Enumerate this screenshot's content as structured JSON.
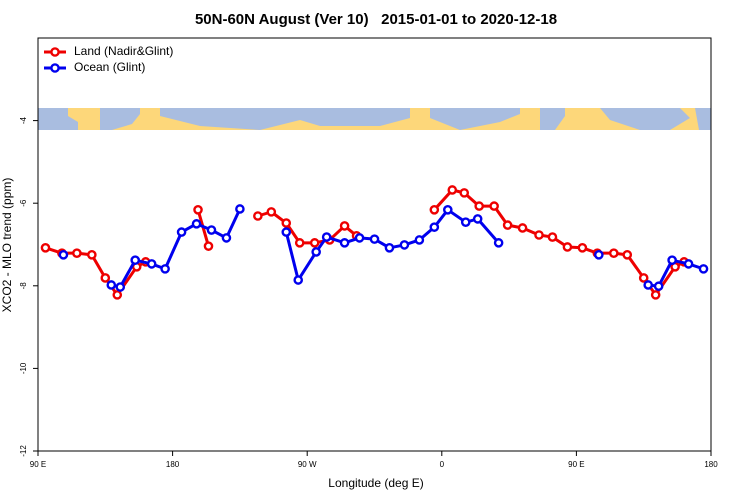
{
  "chart_data": {
    "type": "line",
    "title": "50N-60N August (Ver 10)   2015-01-01 to 2020-12-18",
    "x_label": "Longitude (deg E)",
    "y_label": "XCO2 - MLO trend (ppm)",
    "xlim": [
      90,
      540
    ],
    "ylim": [
      -12,
      -2
    ],
    "xticks": [
      {
        "value": 90,
        "label": "90 E"
      },
      180,
      {
        "value": 270,
        "label": "90 W"
      },
      {
        "value": 360,
        "label": "0"
      },
      {
        "value": 450,
        "label": "90 E"
      },
      {
        "value": 540,
        "label": "180"
      }
    ],
    "yticks": [
      -12,
      -10,
      -8,
      -6,
      -4
    ],
    "legend": "top-left",
    "series": [
      {
        "name": "Land (Nadir&Glint)",
        "color": "#ee0000",
        "x": [
          95,
          106,
          116,
          126,
          135,
          143,
          156,
          162,
          null,
          197,
          204,
          null,
          237,
          246,
          256,
          265,
          275,
          285,
          295,
          303,
          null,
          355,
          367,
          375,
          385,
          395,
          404,
          414,
          425,
          434,
          444,
          454,
          464,
          475,
          484,
          495,
          503,
          516,
          522
        ],
        "values": [
          -7.08,
          -7.21,
          -7.21,
          -7.25,
          -7.81,
          -8.22,
          -7.54,
          -7.42,
          null,
          -6.16,
          -7.04,
          null,
          -6.31,
          -6.21,
          -6.48,
          -6.96,
          -6.96,
          -6.89,
          -6.55,
          -6.79,
          null,
          -6.16,
          -5.68,
          -5.75,
          -6.07,
          -6.07,
          -6.53,
          -6.6,
          -6.77,
          -6.82,
          -7.06,
          -7.08,
          -7.21,
          -7.21,
          -7.25,
          -7.81,
          -8.22,
          -7.54,
          -7.42
        ]
      },
      {
        "name": "Ocean (Glint)",
        "color": "#0000ee",
        "x": [
          107,
          null,
          139,
          145,
          155,
          166,
          175,
          186,
          196,
          206,
          216,
          225,
          null,
          256,
          264,
          276,
          283,
          295,
          305,
          315,
          325,
          335,
          345,
          355,
          364,
          376,
          384,
          398,
          null,
          465,
          null,
          498,
          505,
          514,
          525,
          535
        ],
        "values": [
          -7.25,
          null,
          -7.98,
          -8.03,
          -7.38,
          -7.47,
          -7.59,
          -6.7,
          -6.5,
          -6.65,
          -6.84,
          -6.14,
          null,
          -6.7,
          -7.86,
          -7.18,
          -6.82,
          -6.96,
          -6.84,
          -6.87,
          -7.08,
          -7.01,
          -6.89,
          -6.58,
          -6.16,
          -6.46,
          -6.38,
          -6.96,
          null,
          -7.25,
          null,
          -7.98,
          -8.01,
          -7.38,
          -7.47,
          -7.59
        ]
      }
    ]
  }
}
